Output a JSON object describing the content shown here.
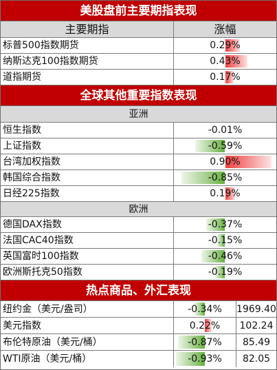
{
  "section1": {
    "title": "美股盘前主要期指表现",
    "col_name": "主要期指",
    "col_change": "涨幅",
    "rows": [
      {
        "name": "标普500指数期货",
        "change": "0.29%",
        "pct": 0.29
      },
      {
        "name": "纳斯达克100指数期货",
        "change": "0.43%",
        "pct": 0.43
      },
      {
        "name": "道指期货",
        "change": "0.17%",
        "pct": 0.17
      }
    ]
  },
  "section2": {
    "title": "全球其他重要指数表现",
    "asia": {
      "label": "亚洲",
      "rows": [
        {
          "name": "恒生指数",
          "change": "-0.01%",
          "pct": -0.01
        },
        {
          "name": "上证指数",
          "change": "-0.59%",
          "pct": -0.59
        },
        {
          "name": "台湾加权指数",
          "change": "0.90%",
          "pct": 0.9
        },
        {
          "name": "韩国综合指数",
          "change": "-0.85%",
          "pct": -0.85
        },
        {
          "name": "日经225指数",
          "change": "0.19%",
          "pct": 0.19
        }
      ]
    },
    "europe": {
      "label": "欧洲",
      "rows": [
        {
          "name": "德国DAX指数",
          "change": "-0.37%",
          "pct": -0.37
        },
        {
          "name": "法国CAC40指数",
          "change": "-0.15%",
          "pct": -0.15
        },
        {
          "name": "英国富时100指数",
          "change": "-0.46%",
          "pct": -0.46
        },
        {
          "name": "欧洲斯托克50指数",
          "change": "-0.19%",
          "pct": -0.19
        }
      ]
    }
  },
  "section3": {
    "title": "热点商品、外汇表现",
    "rows": [
      {
        "name": "纽约金（美元/盎司）",
        "change": "-0.34%",
        "pct": -0.34,
        "price": "1969.40"
      },
      {
        "name": "美元指数",
        "change": "0.22%",
        "pct": 0.22,
        "price": "102.24"
      },
      {
        "name": "布伦特原油（美元/桶）",
        "change": "-0.87%",
        "pct": -0.87,
        "price": "85.49"
      },
      {
        "name": "WTI原油（美元/桶）",
        "change": "-0.93%",
        "pct": -0.93,
        "price": "82.05"
      }
    ]
  },
  "colors": {
    "header_red": "#c00000",
    "gain": "#ef3f3f",
    "loss": "#66b03f",
    "header_gray": "#d9d9d9"
  }
}
